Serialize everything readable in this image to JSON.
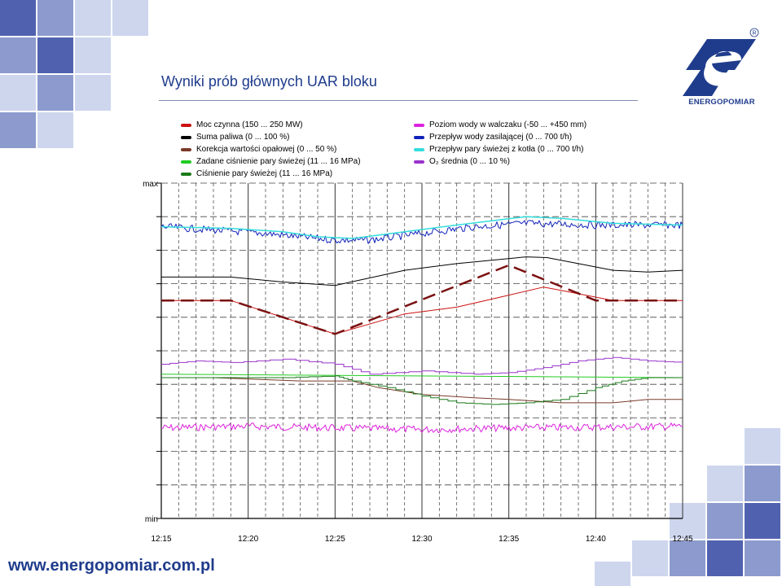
{
  "slide": {
    "title": "Wyniki prób głównych UAR bloku",
    "url": "www.energopomiar.com.pl",
    "logo": {
      "name": "ENERGOPOMIAR",
      "registered": "R"
    },
    "colors": {
      "brand": "#1f3c8c",
      "deco_dark": "#3d51a6",
      "deco_mid": "#7f8fc8",
      "deco_light": "#c9d1ec"
    }
  },
  "chart_data": {
    "type": "line",
    "title": "",
    "xlabel": "",
    "ylabel": "",
    "x_ticks": [
      "12:15",
      "12:20",
      "12:25",
      "12:30",
      "12:35",
      "12:40",
      "12:45"
    ],
    "x_range": [
      "12:15",
      "12:45"
    ],
    "y_range_labels": {
      "top": "max",
      "bottom": "min"
    },
    "grid": true,
    "legend_placement": "top",
    "series": [
      {
        "name": "Moc czynna (150 ... 250 MW)",
        "color": "#cc1111",
        "style": "solid",
        "width": 1,
        "points": [
          [
            "12:15",
            0.65
          ],
          [
            "12:19",
            0.65
          ],
          [
            "12:25",
            0.55
          ],
          [
            "12:29",
            0.61
          ],
          [
            "12:32",
            0.63
          ],
          [
            "12:34.5",
            0.66
          ],
          [
            "12:37",
            0.69
          ],
          [
            "12:38",
            0.68
          ],
          [
            "12:41",
            0.65
          ],
          [
            "12:45",
            0.65
          ]
        ]
      },
      {
        "name": "Suma paliwa (0 ... 100 %)",
        "color": "#000000",
        "style": "solid",
        "width": 1,
        "points": [
          [
            "12:15",
            0.72
          ],
          [
            "12:19",
            0.72
          ],
          [
            "12:22",
            0.705
          ],
          [
            "12:25",
            0.695
          ],
          [
            "12:29",
            0.74
          ],
          [
            "12:32",
            0.76
          ],
          [
            "12:34",
            0.77
          ],
          [
            "12:36",
            0.78
          ],
          [
            "12:37.2",
            0.778
          ],
          [
            "12:39",
            0.76
          ],
          [
            "12:41",
            0.74
          ],
          [
            "12:43",
            0.735
          ],
          [
            "12:45",
            0.74
          ]
        ]
      },
      {
        "name": "Korekcja wartości opałowej (0 ... 50 %)",
        "color": "#7a3a2a",
        "style": "solid",
        "width": 1,
        "points": [
          [
            "12:15",
            0.42
          ],
          [
            "12:18",
            0.42
          ],
          [
            "12:23",
            0.41
          ],
          [
            "12:26",
            0.41
          ],
          [
            "12:27.5",
            0.39
          ],
          [
            "12:30",
            0.37
          ],
          [
            "12:33",
            0.36
          ],
          [
            "12:35",
            0.355
          ],
          [
            "12:38",
            0.345
          ],
          [
            "12:41",
            0.345
          ],
          [
            "12:43",
            0.355
          ],
          [
            "12:45",
            0.355
          ]
        ]
      },
      {
        "name": "Zadane ciśnienie pary świeżej (11 ... 16 MPa)",
        "color": "#22cc22",
        "style": "solid",
        "width": 1,
        "points": [
          [
            "12:15",
            0.43
          ],
          [
            "12:45",
            0.42
          ]
        ]
      },
      {
        "name": "Ciśnienie pary świeżej (11 ... 16 MPa)",
        "color": "#1a7a1a",
        "style": "step",
        "width": 1,
        "points": [
          [
            "12:15",
            0.42
          ],
          [
            "12:22",
            0.42
          ],
          [
            "12:25",
            0.425
          ],
          [
            "12:26",
            0.41
          ],
          [
            "12:28",
            0.39
          ],
          [
            "12:30",
            0.365
          ],
          [
            "12:32",
            0.345
          ],
          [
            "12:34",
            0.34
          ],
          [
            "12:36",
            0.345
          ],
          [
            "12:38",
            0.355
          ],
          [
            "12:40",
            0.39
          ],
          [
            "12:41.5",
            0.41
          ],
          [
            "12:43",
            0.42
          ],
          [
            "12:45",
            0.42
          ]
        ]
      },
      {
        "name": "Poziom wody w walczaku (-50 ... +450 mm)",
        "color": "#dd22dd",
        "style": "noisy",
        "width": 1,
        "points": [
          [
            "12:15",
            0.27
          ],
          [
            "12:20",
            0.275
          ],
          [
            "12:25",
            0.27
          ],
          [
            "12:30",
            0.265
          ],
          [
            "12:35",
            0.27
          ],
          [
            "12:40",
            0.272
          ],
          [
            "12:45",
            0.275
          ]
        ]
      },
      {
        "name": "Przepływ wody zasilającej (0 ... 700 t/h)",
        "color": "#1122bb",
        "style": "noisy",
        "width": 1,
        "points": [
          [
            "12:15",
            0.87
          ],
          [
            "12:18",
            0.86
          ],
          [
            "12:21",
            0.85
          ],
          [
            "12:25",
            0.83
          ],
          [
            "12:27",
            0.83
          ],
          [
            "12:30",
            0.85
          ],
          [
            "12:33",
            0.87
          ],
          [
            "12:36",
            0.88
          ],
          [
            "12:40",
            0.875
          ],
          [
            "12:45",
            0.875
          ]
        ]
      },
      {
        "name": "Przepływ pary świeżej z kotła (0 ... 700 t/h)",
        "color": "#33dddd",
        "style": "solid",
        "width": 1.5,
        "points": [
          [
            "12:15",
            0.87
          ],
          [
            "12:19",
            0.865
          ],
          [
            "12:22",
            0.855
          ],
          [
            "12:24",
            0.84
          ],
          [
            "12:26",
            0.835
          ],
          [
            "12:29",
            0.855
          ],
          [
            "12:32",
            0.875
          ],
          [
            "12:36",
            0.9
          ],
          [
            "12:38",
            0.895
          ],
          [
            "12:41",
            0.88
          ],
          [
            "12:45",
            0.875
          ]
        ]
      },
      {
        "name": "O₂ średnia (0 ... 10 %)",
        "color": "#9933cc",
        "style": "step",
        "width": 1,
        "points": [
          [
            "12:15",
            0.46
          ],
          [
            "12:17",
            0.47
          ],
          [
            "12:19",
            0.465
          ],
          [
            "12:22",
            0.475
          ],
          [
            "12:25",
            0.46
          ],
          [
            "12:27",
            0.43
          ],
          [
            "12:30",
            0.44
          ],
          [
            "12:33",
            0.43
          ],
          [
            "12:35",
            0.435
          ],
          [
            "12:37",
            0.45
          ],
          [
            "12:39",
            0.47
          ],
          [
            "12:41",
            0.48
          ],
          [
            "12:43",
            0.47
          ],
          [
            "12:45",
            0.465
          ]
        ]
      },
      {
        "name": "",
        "color": "#7a1010",
        "style": "dashed",
        "width": 2.5,
        "points": [
          [
            "12:15",
            0.65
          ],
          [
            "12:19",
            0.65
          ],
          [
            "12:25",
            0.55
          ],
          [
            "12:35",
            0.755
          ],
          [
            "12:40",
            0.65
          ],
          [
            "12:45",
            0.65
          ]
        ]
      }
    ]
  }
}
